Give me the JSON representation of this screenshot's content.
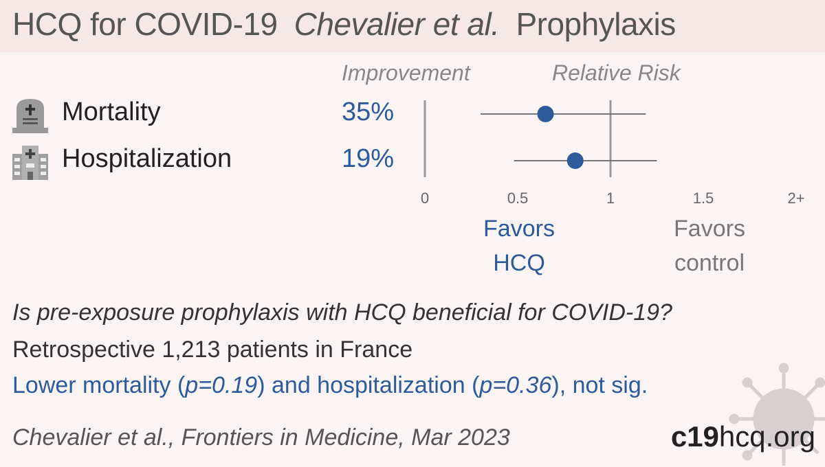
{
  "header": {
    "title": "HCQ for COVID-19",
    "authors": "Chevalier et al.",
    "topic": "Prophylaxis"
  },
  "columns": {
    "improvement": "Improvement",
    "relative_risk": "Relative Risk"
  },
  "outcomes": [
    {
      "label": "Mortality",
      "improvement": "35%",
      "icon": "tombstone-icon"
    },
    {
      "label": "Hospitalization",
      "improvement": "19%",
      "icon": "hospital-icon"
    }
  ],
  "favors": {
    "hcq_line1": "Favors",
    "hcq_line2": "HCQ",
    "control_line1": "Favors",
    "control_line2": "control"
  },
  "chart_data": {
    "type": "forest",
    "categories": [
      "Mortality",
      "Hospitalization"
    ],
    "series": [
      {
        "values": [
          0.65,
          0.81
        ],
        "ci_low": [
          0.3,
          0.48
        ],
        "ci_high": [
          1.19,
          1.25
        ]
      }
    ],
    "xlim": [
      0,
      2
    ],
    "x_ticks": [
      {
        "value": 0,
        "label": "0"
      },
      {
        "value": 0.5,
        "label": "0.5"
      },
      {
        "value": 1,
        "label": "1"
      },
      {
        "value": 1.5,
        "label": "1.5"
      },
      {
        "value": 2,
        "label": "2+"
      }
    ],
    "reference_line": 1,
    "colors": {
      "point": "#2d5a9b",
      "line": "#777777",
      "axis": "#999999"
    }
  },
  "question": "Is pre-exposure prophylaxis with HCQ beneficial for COVID-19?",
  "details": "Retrospective 1,213 patients in France",
  "conclusion": {
    "part1": "Lower mortality (",
    "p1": "p=0.19",
    "part2": ") and hospitalization (",
    "p2": "p=0.36",
    "part3": "), not sig."
  },
  "citation": "Chevalier et al., Frontiers in Medicine, Mar 2023",
  "brand": {
    "bold": "c19",
    "rest": "hcq.org"
  }
}
